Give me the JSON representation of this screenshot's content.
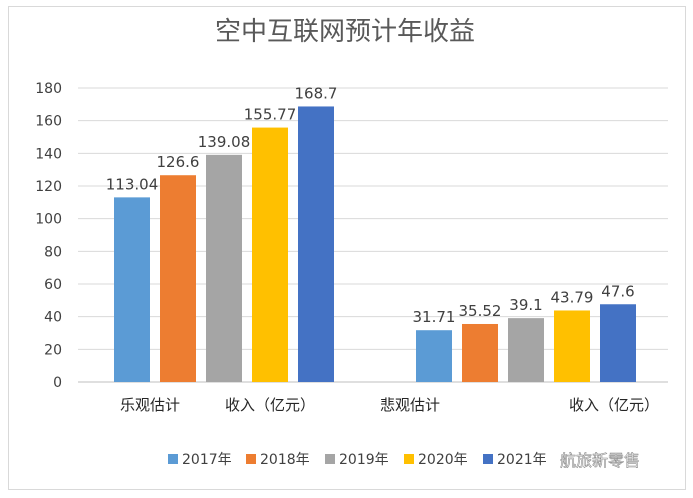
{
  "chart_data": {
    "type": "bar",
    "title": "空中互联网预计年收益",
    "categories": [
      "乐观估计",
      "悲观估计"
    ],
    "category_suffix": "收入（亿元）",
    "series": [
      {
        "name": "2017年",
        "color": "#5b9bd5",
        "values": [
          113.04,
          31.71
        ]
      },
      {
        "name": "2018年",
        "color": "#ed7d31",
        "values": [
          126.6,
          35.52
        ]
      },
      {
        "name": "2019年",
        "color": "#a5a5a5",
        "values": [
          139.08,
          39.1
        ]
      },
      {
        "name": "2020年",
        "color": "#ffc000",
        "values": [
          155.77,
          43.79
        ]
      },
      {
        "name": "2021年",
        "color": "#4472c4",
        "values": [
          168.7,
          47.6
        ]
      }
    ],
    "data_labels": [
      [
        "113.04",
        "31.71"
      ],
      [
        "126.6",
        "35.52"
      ],
      [
        "139.08",
        "39.1"
      ],
      [
        "155.77",
        "43.79"
      ],
      [
        "168.7",
        "47.6"
      ]
    ],
    "ylim": [
      0,
      180
    ],
    "yticks": [
      0,
      20,
      40,
      60,
      80,
      100,
      120,
      140,
      160,
      180
    ],
    "grid": true,
    "legend_position": "bottom"
  },
  "watermark": "航旅新零售"
}
